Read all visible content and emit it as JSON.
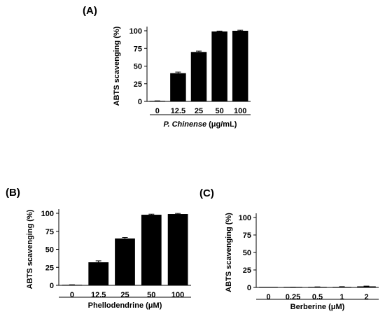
{
  "chart_data": [
    {
      "type": "bar",
      "panel_label": "(A)",
      "categories": [
        "0",
        "12.5",
        "25",
        "50",
        "100"
      ],
      "values": [
        0.5,
        40,
        70,
        99,
        100
      ],
      "errors": [
        0.3,
        1.5,
        1.2,
        0.6,
        0.8
      ],
      "xlabel_italic": "P. Chinense",
      "xlabel_rest": " (μg/mL)",
      "ylabel": "ABTS scavenging (%)",
      "ylim": [
        0,
        100
      ],
      "yticks": [
        "0",
        "25",
        "50",
        "75",
        "100"
      ],
      "bar_color": "#000000"
    },
    {
      "type": "bar",
      "panel_label": "(B)",
      "categories": [
        "0",
        "12.5",
        "25",
        "50",
        "100"
      ],
      "values": [
        0.5,
        32,
        65,
        98,
        99
      ],
      "errors": [
        0.3,
        2,
        1.5,
        0.8,
        0.8
      ],
      "xlabel_italic": "",
      "xlabel_rest": "Phellodendrine (μM)",
      "ylabel": "ABTS scavenging (%)",
      "ylim": [
        0,
        100
      ],
      "yticks": [
        "0",
        "25",
        "50",
        "75",
        "100"
      ],
      "bar_color": "#000000"
    },
    {
      "type": "bar",
      "panel_label": "(C)",
      "categories": [
        "0",
        "0.25",
        "0.5",
        "1",
        "2"
      ],
      "values": [
        0,
        0.2,
        0.5,
        0.8,
        1.5
      ],
      "errors": [
        0,
        0.2,
        0.3,
        0.3,
        0.4
      ],
      "xlabel_italic": "",
      "xlabel_rest": "Berberine (μM)",
      "ylabel": "ABTS scavenging (%)",
      "ylim": [
        0,
        100
      ],
      "yticks": [
        "0",
        "25",
        "50",
        "75",
        "100"
      ],
      "bar_color": "#000000"
    }
  ]
}
